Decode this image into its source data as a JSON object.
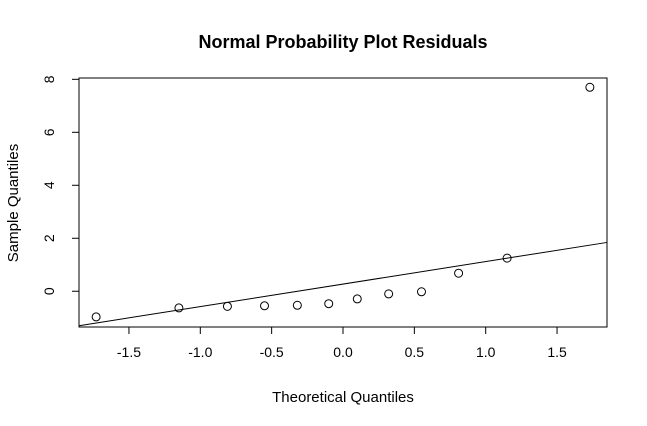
{
  "chart_data": {
    "type": "scatter",
    "title": "Normal Probability Plot Residuals",
    "xlabel": "Theoretical Quantiles",
    "ylabel": "Sample Quantiles",
    "xlim": [
      -1.85,
      1.85
    ],
    "ylim": [
      -1.35,
      8.05
    ],
    "x_ticks": [
      -1.5,
      -1.0,
      -0.5,
      0.0,
      0.5,
      1.0,
      1.5
    ],
    "x_tick_labels": [
      "-1.5",
      "-1.0",
      "-0.5",
      "0.0",
      "0.5",
      "1.0",
      "1.5"
    ],
    "y_ticks": [
      0,
      2,
      4,
      6,
      8
    ],
    "y_tick_labels": [
      "0",
      "2",
      "4",
      "6",
      "8"
    ],
    "grid": false,
    "points": [
      {
        "x": -1.73,
        "y": -0.97
      },
      {
        "x": -1.15,
        "y": -0.63
      },
      {
        "x": -0.81,
        "y": -0.57
      },
      {
        "x": -0.55,
        "y": -0.55
      },
      {
        "x": -0.32,
        "y": -0.53
      },
      {
        "x": -0.1,
        "y": -0.47
      },
      {
        "x": 0.1,
        "y": -0.29
      },
      {
        "x": 0.32,
        "y": -0.1
      },
      {
        "x": 0.55,
        "y": -0.02
      },
      {
        "x": 0.81,
        "y": 0.68
      },
      {
        "x": 1.15,
        "y": 1.25
      },
      {
        "x": 1.73,
        "y": 7.7
      }
    ],
    "reference_line": {
      "intercept": 0.27,
      "slope": 0.85
    }
  }
}
